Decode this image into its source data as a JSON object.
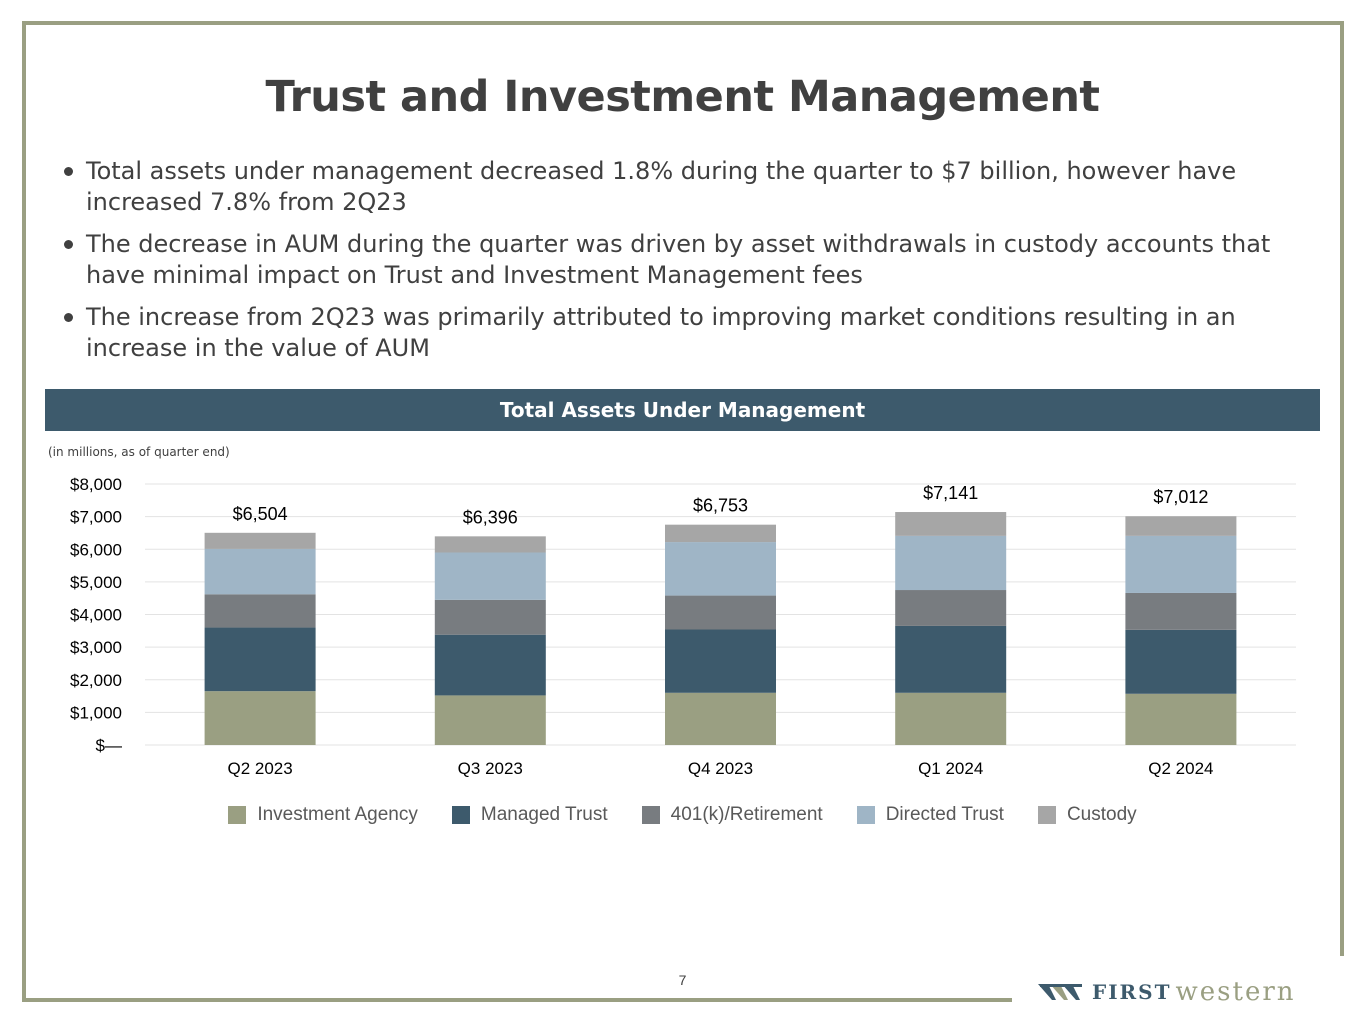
{
  "page": {
    "title": "Trust and Investment Management",
    "bullets": [
      "Total assets under management decreased 1.8% during the quarter to $7 billion, however have increased 7.8% from 2Q23",
      "The decrease in AUM during the quarter was driven by asset withdrawals in custody accounts that have minimal impact on Trust and Investment Management fees",
      "The increase from 2Q23 was primarily attributed to improving market conditions resulting in an increase in the value of AUM"
    ],
    "chart_banner": "Total Assets Under Management",
    "chart_note": "(in millions, as of quarter end)",
    "page_number": "7",
    "logo": {
      "first": "FIRST",
      "western": "western"
    }
  },
  "colors": {
    "frame": "#9a9f82",
    "banner": "#3d5a6c",
    "investment_agency": "#9a9f82",
    "managed_trust": "#3d5a6c",
    "retirement": "#787c80",
    "directed_trust": "#9fb5c6",
    "custody": "#a6a6a6"
  },
  "chart_data": {
    "type": "bar",
    "stacked": true,
    "categories": [
      "Q2 2023",
      "Q3 2023",
      "Q4 2023",
      "Q1 2024",
      "Q2 2024"
    ],
    "series": [
      {
        "name": "Investment Agency",
        "color": "#9a9f82",
        "values": [
          1650,
          1520,
          1600,
          1600,
          1570
        ]
      },
      {
        "name": "Managed Trust",
        "color": "#3d5a6c",
        "values": [
          1950,
          1860,
          1940,
          2050,
          1960
        ]
      },
      {
        "name": "401(k)/Retirement",
        "color": "#787c80",
        "values": [
          1020,
          1070,
          1040,
          1100,
          1130
        ]
      },
      {
        "name": "Directed Trust",
        "color": "#9fb5c6",
        "values": [
          1390,
          1450,
          1640,
          1660,
          1750
        ]
      },
      {
        "name": "Custody",
        "color": "#a6a6a6",
        "values": [
          494,
          496,
          533,
          731,
          602
        ]
      }
    ],
    "totals": [
      6504,
      6396,
      6753,
      7141,
      7012
    ],
    "total_labels": [
      "$6,504",
      "$6,396",
      "$6,753",
      "$7,141",
      "$7,012"
    ],
    "yticks": [
      0,
      1000,
      2000,
      3000,
      4000,
      5000,
      6000,
      7000,
      8000
    ],
    "ytick_labels": [
      "$—",
      "$1,000",
      "$2,000",
      "$3,000",
      "$4,000",
      "$5,000",
      "$6,000",
      "$7,000",
      "$8,000"
    ],
    "ylim": [
      0,
      8000
    ],
    "grid": true,
    "legend": "bottom"
  }
}
